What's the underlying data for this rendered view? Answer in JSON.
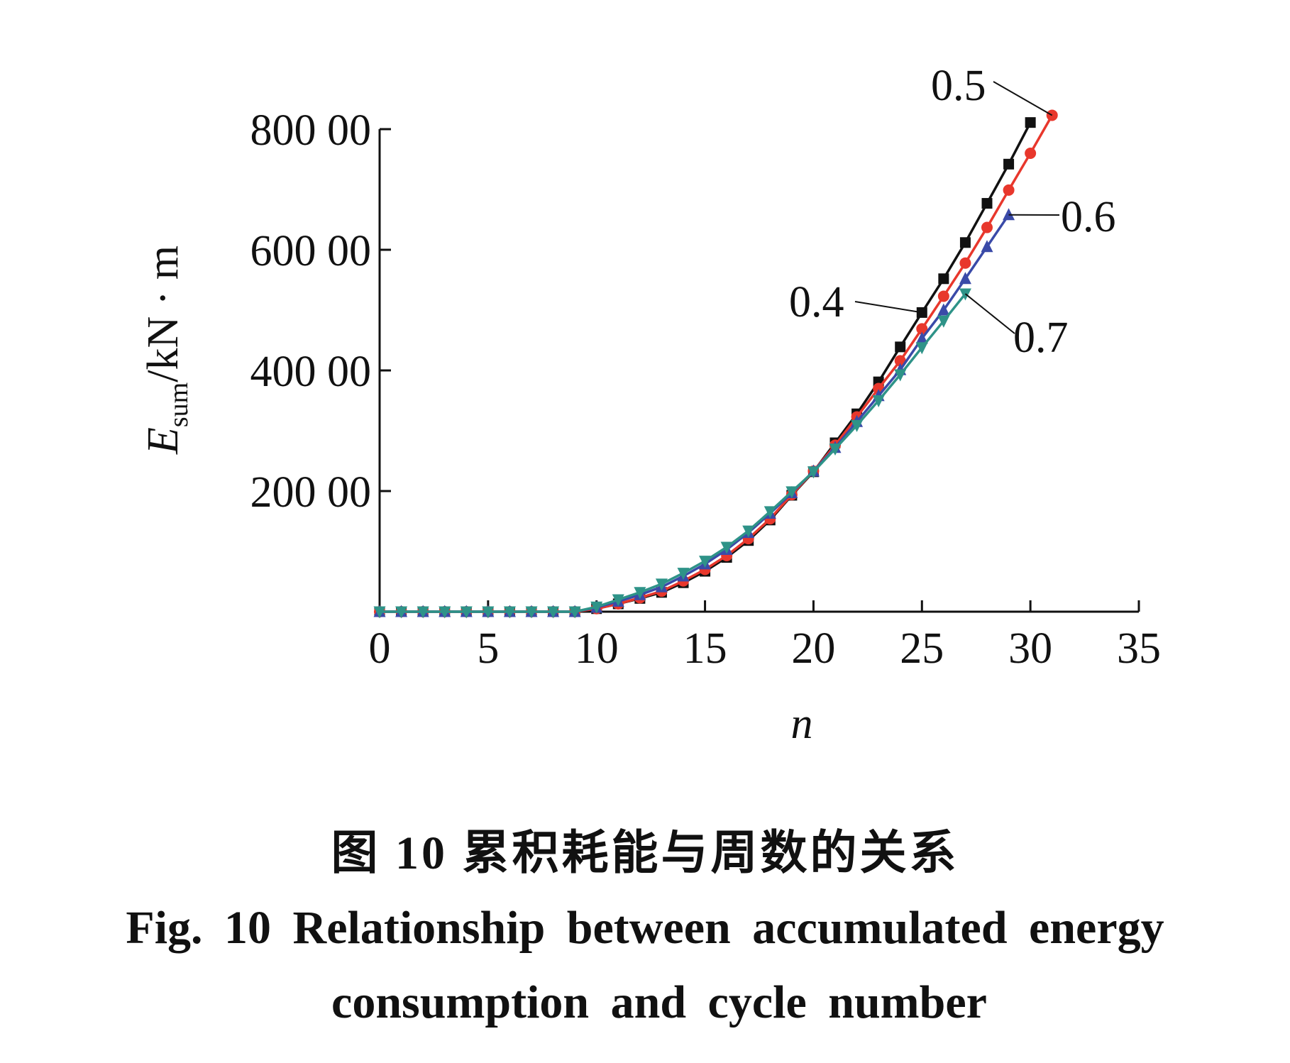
{
  "chart_data": {
    "type": "line",
    "xlabel": "n",
    "ylabel_main": "E",
    "ylabel_sub": "sum",
    "ylabel_unit": "/kN · m",
    "xlim": [
      0,
      35
    ],
    "ylim": [
      0,
      80000
    ],
    "xticks": [
      0,
      5,
      10,
      15,
      20,
      25,
      30,
      35
    ],
    "xtick_labels": [
      "0",
      "5",
      "10",
      "15",
      "20",
      "25",
      "30",
      "35"
    ],
    "yticks": [
      20000,
      40000,
      60000,
      80000
    ],
    "ytick_labels": [
      "200 00",
      "400 00",
      "600 00",
      "800 00"
    ],
    "grid": false,
    "series": [
      {
        "name": "0.4",
        "color": "#111111",
        "marker": "square",
        "x": [
          0,
          1,
          2,
          3,
          4,
          5,
          6,
          7,
          8,
          9,
          10,
          11,
          12,
          13,
          14,
          15,
          16,
          17,
          18,
          19,
          20,
          21,
          22,
          23,
          24,
          25,
          26,
          27,
          28,
          29,
          30
        ],
        "y": [
          0,
          0,
          0,
          0,
          0,
          0,
          0,
          0,
          0,
          0,
          500,
          1300,
          2200,
          3200,
          4800,
          6700,
          9000,
          11800,
          15200,
          19300,
          23200,
          28000,
          32800,
          38100,
          43900,
          49600,
          55200,
          61200,
          67700,
          74200,
          81100
        ]
      },
      {
        "name": "0.5",
        "color": "#e8372c",
        "marker": "circle",
        "x": [
          0,
          1,
          2,
          3,
          4,
          5,
          6,
          7,
          8,
          9,
          10,
          11,
          12,
          13,
          14,
          15,
          16,
          17,
          18,
          19,
          20,
          21,
          22,
          23,
          24,
          25,
          26,
          27,
          28,
          29,
          30,
          31
        ],
        "y": [
          0,
          0,
          0,
          0,
          0,
          0,
          0,
          0,
          0,
          0,
          500,
          1300,
          2300,
          3400,
          5100,
          7000,
          9300,
          12100,
          15400,
          19400,
          23300,
          27600,
          32300,
          37000,
          41600,
          46900,
          52300,
          57800,
          63700,
          69900,
          76000,
          82300
        ]
      },
      {
        "name": "0.6",
        "color": "#3a4aa8",
        "marker": "triangle-up",
        "x": [
          0,
          1,
          2,
          3,
          4,
          5,
          6,
          7,
          8,
          9,
          10,
          11,
          12,
          13,
          14,
          15,
          16,
          17,
          18,
          19,
          20,
          21,
          22,
          23,
          24,
          25,
          26,
          27,
          28,
          29
        ],
        "y": [
          0,
          0,
          0,
          0,
          0,
          0,
          0,
          0,
          0,
          0,
          700,
          1700,
          2800,
          4100,
          5900,
          7900,
          10300,
          13100,
          16300,
          19700,
          23300,
          27200,
          31500,
          35800,
          40100,
          45300,
          50000,
          55200,
          60500,
          65800
        ]
      },
      {
        "name": "0.7",
        "color": "#2e9388",
        "marker": "triangle-down",
        "x": [
          0,
          1,
          2,
          3,
          4,
          5,
          6,
          7,
          8,
          9,
          10,
          11,
          12,
          13,
          14,
          15,
          16,
          17,
          18,
          19,
          20,
          21,
          22,
          23,
          24,
          25,
          26,
          27
        ],
        "y": [
          0,
          0,
          0,
          0,
          0,
          0,
          0,
          0,
          0,
          0,
          800,
          2000,
          3200,
          4600,
          6400,
          8400,
          10700,
          13400,
          16600,
          19900,
          23200,
          27000,
          30900,
          35000,
          39300,
          43800,
          48200,
          52700
        ]
      }
    ]
  },
  "caption": {
    "cn": "图 10   累积耗能与周数的关系",
    "en_line1": "Fig.  10    Relationship  between  accumulated  energy",
    "en_line2": "consumption  and  cycle  number"
  }
}
